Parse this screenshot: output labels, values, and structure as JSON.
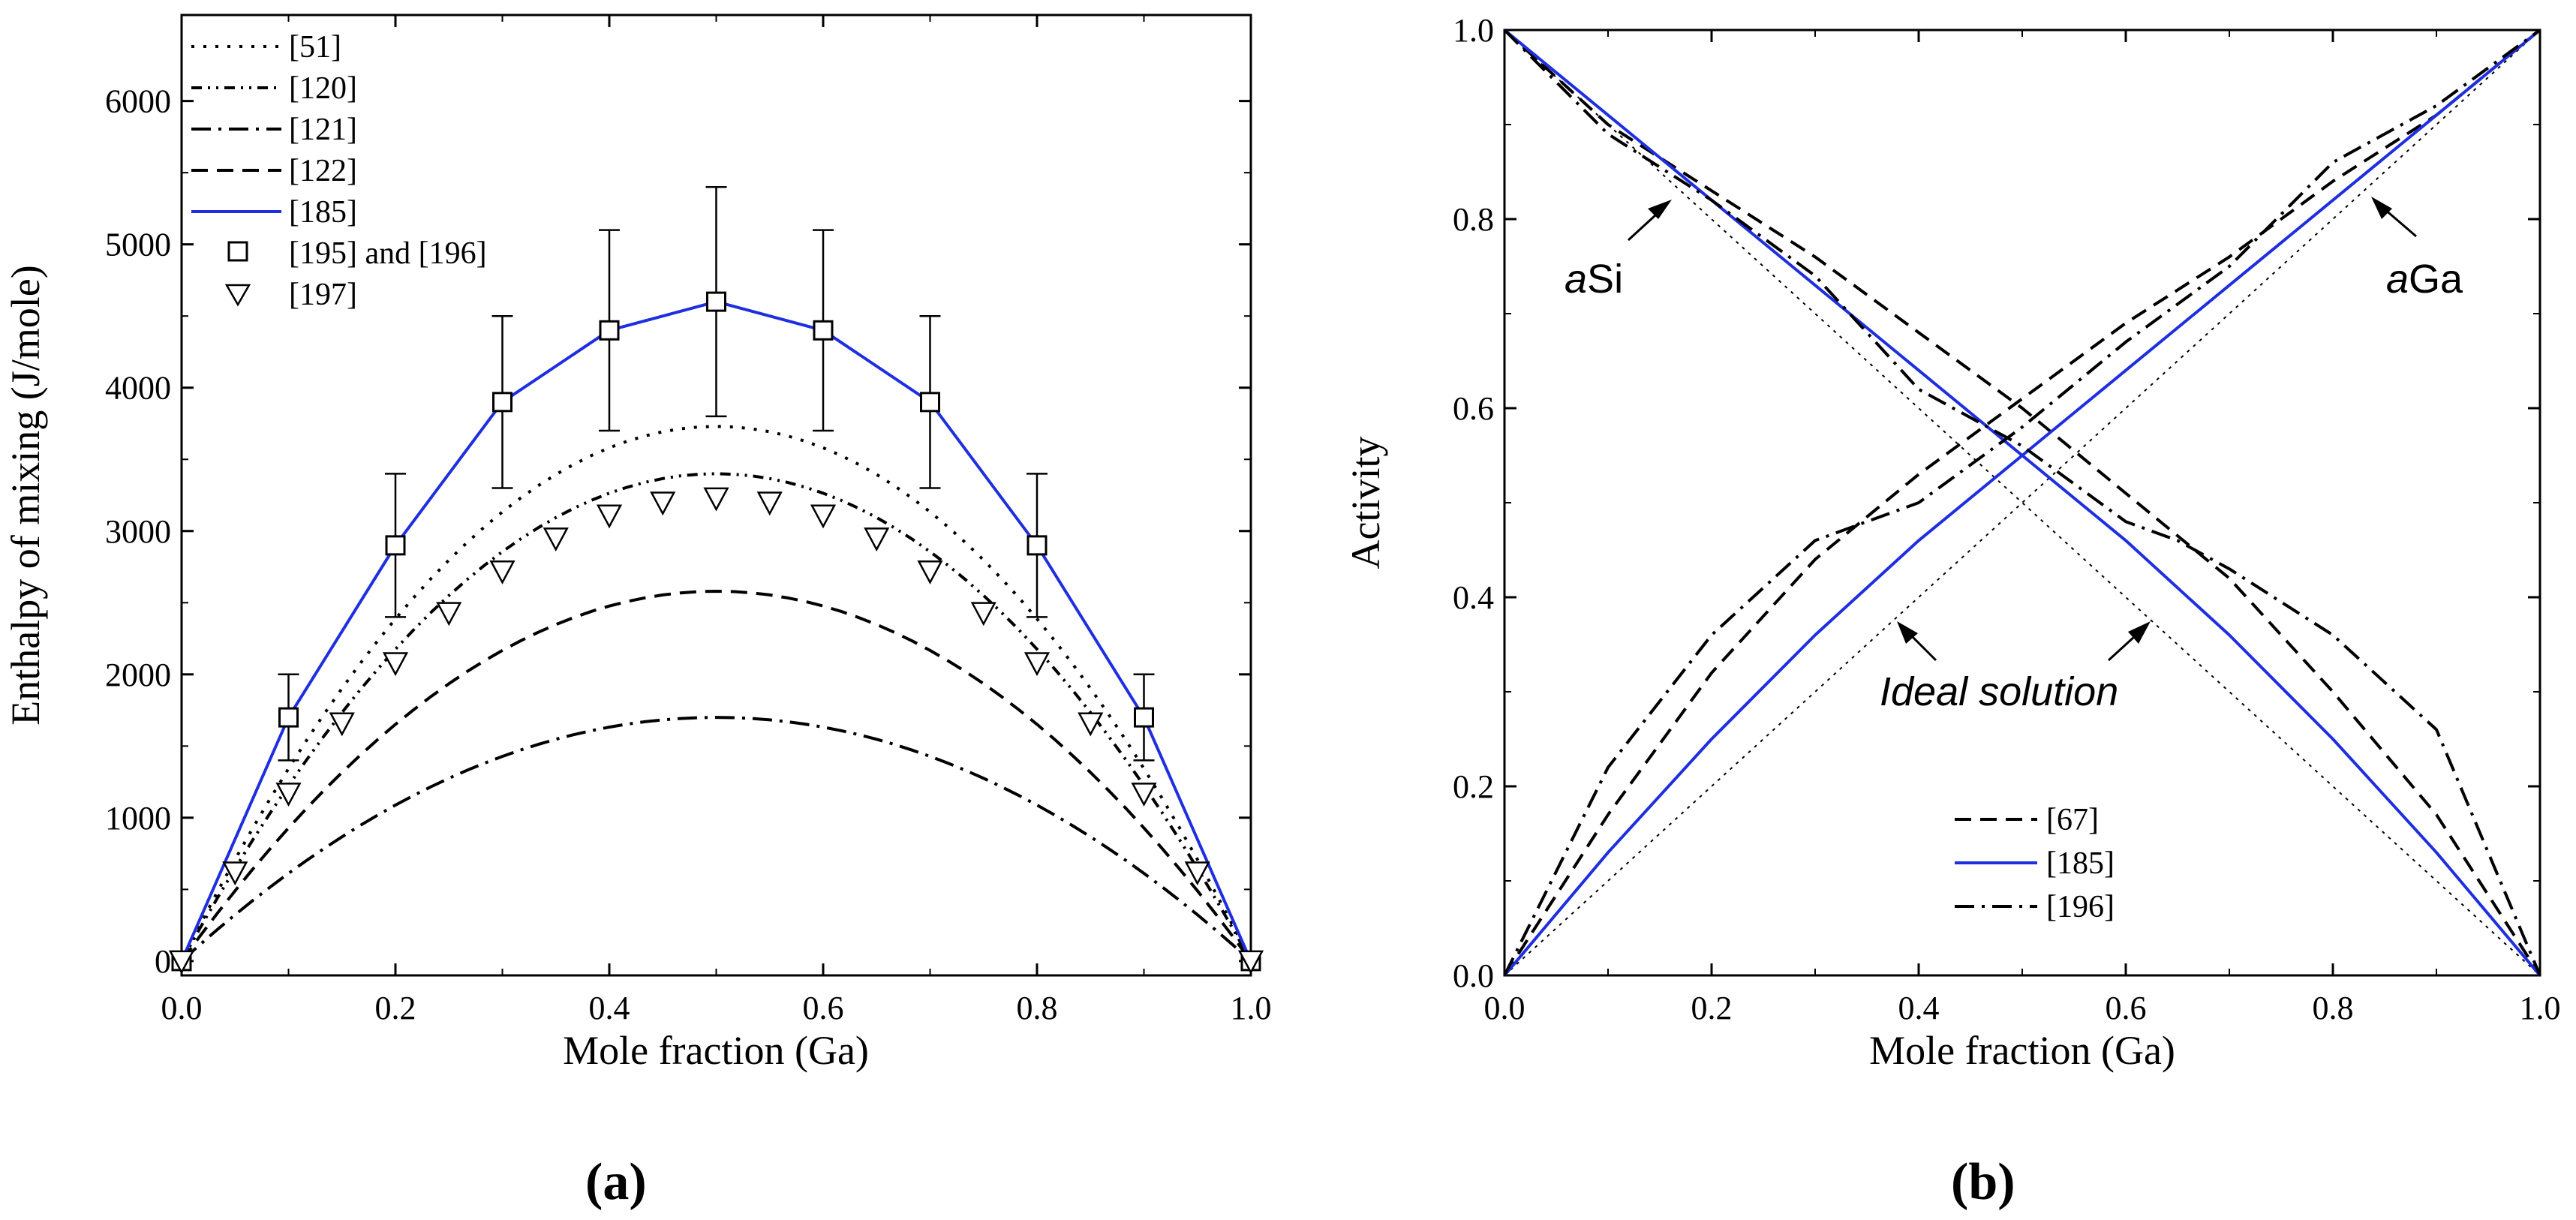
{
  "colors": {
    "blue": "#1f2fe0",
    "black": "#000000"
  },
  "panels": {
    "a": {
      "label_open": "(",
      "label_letter": "a",
      "label_close": ")"
    },
    "b": {
      "label_open": "(",
      "label_letter": "b",
      "label_close": ")"
    }
  },
  "chart_data": [
    {
      "id": "a",
      "type": "line",
      "xlabel": "Mole fraction (Ga)",
      "ylabel": "Enthalpy of mixing (J/mole)",
      "xlim": [
        0.0,
        1.0
      ],
      "ylim": [
        -100,
        6600
      ],
      "xticks": [
        0.0,
        0.2,
        0.4,
        0.6,
        0.8,
        1.0
      ],
      "xtick_labels": [
        "0.0",
        "0.2",
        "0.4",
        "0.6",
        "0.8",
        "1.0"
      ],
      "yticks": [
        0,
        1000,
        2000,
        3000,
        4000,
        5000,
        6000
      ],
      "ytick_labels": [
        "0",
        "1000",
        "2000",
        "3000",
        "4000",
        "5000",
        "6000"
      ],
      "legend_position": "top-left",
      "series": [
        {
          "name": "[51]",
          "style": "dotted",
          "color": "#000000",
          "peak": 3730
        },
        {
          "name": "[120]",
          "style": "dash-dot-dot",
          "color": "#000000",
          "peak": 3400
        },
        {
          "name": "[121]",
          "style": "dash-dot",
          "color": "#000000",
          "peak": 1700
        },
        {
          "name": "[122]",
          "style": "dashed",
          "color": "#000000",
          "peak": 2580
        },
        {
          "name": "[185]",
          "style": "solid",
          "color": "#1f2fe0",
          "x": [
            0.0,
            0.1,
            0.2,
            0.3,
            0.4,
            0.5,
            0.6,
            0.7,
            0.8,
            0.9,
            1.0
          ],
          "y": [
            0,
            1700,
            2900,
            3900,
            4400,
            4600,
            4400,
            3900,
            2900,
            1700,
            0
          ]
        },
        {
          "name": "[195] and [196]",
          "style": "square-markers",
          "color": "#000000",
          "x": [
            0.0,
            0.1,
            0.2,
            0.3,
            0.4,
            0.5,
            0.6,
            0.7,
            0.8,
            0.9,
            1.0
          ],
          "y": [
            0,
            1700,
            2900,
            3900,
            4400,
            4600,
            4400,
            3900,
            2900,
            1700,
            0
          ],
          "error_low": [
            null,
            1400,
            2400,
            3300,
            3700,
            3800,
            3700,
            3300,
            2400,
            1400,
            null
          ],
          "error_high": [
            null,
            2000,
            3400,
            4500,
            5100,
            5400,
            5100,
            4500,
            3400,
            2000,
            null
          ]
        },
        {
          "name": "[197]",
          "style": "triangle-markers",
          "color": "#000000",
          "x": [
            0.0,
            0.05,
            0.1,
            0.15,
            0.2,
            0.25,
            0.3,
            0.35,
            0.4,
            0.45,
            0.5,
            0.55,
            0.6,
            0.65,
            0.7,
            0.75,
            0.8,
            0.85,
            0.9,
            0.95,
            1.0
          ],
          "y": [
            0,
            620,
            1170,
            1660,
            2080,
            2430,
            2720,
            2950,
            3110,
            3200,
            3230,
            3200,
            3110,
            2950,
            2720,
            2430,
            2080,
            1660,
            1170,
            620,
            0
          ]
        }
      ]
    },
    {
      "id": "b",
      "type": "line",
      "xlabel": "Mole fraction (Ga)",
      "ylabel": "Activity",
      "xlim": [
        0.0,
        1.0
      ],
      "ylim": [
        0.0,
        1.0
      ],
      "xticks": [
        0.0,
        0.2,
        0.4,
        0.6,
        0.8,
        1.0
      ],
      "xtick_labels": [
        "0.0",
        "0.2",
        "0.4",
        "0.6",
        "0.8",
        "1.0"
      ],
      "yticks": [
        0.0,
        0.2,
        0.4,
        0.6,
        0.8,
        1.0
      ],
      "ytick_labels": [
        "0.0",
        "0.2",
        "0.4",
        "0.6",
        "0.8",
        "1.0"
      ],
      "legend_position": "bottom-center",
      "annotations": {
        "asi_italic": "a",
        "asi_rest": "Si",
        "aga_italic": "a",
        "aga_rest": "Ga",
        "ideal": "Ideal solution"
      },
      "series": [
        {
          "name": "Ideal aGa",
          "legend": false,
          "style": "thin-dotted",
          "color": "#000000",
          "x": [
            0.0,
            1.0
          ],
          "y": [
            0.0,
            1.0
          ]
        },
        {
          "name": "Ideal aSi",
          "legend": false,
          "style": "thin-dotted",
          "color": "#000000",
          "x": [
            0.0,
            1.0
          ],
          "y": [
            1.0,
            0.0
          ]
        },
        {
          "name": "[67]",
          "component": "aGa",
          "style": "dashed",
          "color": "#000000",
          "x": [
            0.0,
            0.1,
            0.2,
            0.3,
            0.4,
            0.5,
            0.6,
            0.7,
            0.8,
            0.9,
            1.0
          ],
          "y": [
            0.0,
            0.17,
            0.32,
            0.44,
            0.53,
            0.61,
            0.69,
            0.76,
            0.84,
            0.91,
            1.0
          ]
        },
        {
          "name": "[67]",
          "component": "aSi",
          "style": "dashed",
          "color": "#000000",
          "x": [
            0.0,
            0.1,
            0.2,
            0.3,
            0.4,
            0.5,
            0.6,
            0.7,
            0.8,
            0.9,
            1.0
          ],
          "y": [
            1.0,
            0.9,
            0.83,
            0.76,
            0.68,
            0.6,
            0.51,
            0.42,
            0.3,
            0.17,
            0.0
          ]
        },
        {
          "name": "[185]",
          "component": "aGa",
          "style": "solid",
          "color": "#1f2fe0",
          "x": [
            0.0,
            0.1,
            0.2,
            0.3,
            0.4,
            0.5,
            0.6,
            0.7,
            0.8,
            0.9,
            1.0
          ],
          "y": [
            0.0,
            0.13,
            0.25,
            0.36,
            0.46,
            0.55,
            0.64,
            0.73,
            0.82,
            0.91,
            1.0
          ]
        },
        {
          "name": "[185]",
          "component": "aSi",
          "style": "solid",
          "color": "#1f2fe0",
          "x": [
            0.0,
            0.1,
            0.2,
            0.3,
            0.4,
            0.5,
            0.6,
            0.7,
            0.8,
            0.9,
            1.0
          ],
          "y": [
            1.0,
            0.91,
            0.82,
            0.73,
            0.64,
            0.55,
            0.46,
            0.36,
            0.25,
            0.13,
            0.0
          ]
        },
        {
          "name": "[196]",
          "component": "aGa",
          "style": "dash-dot",
          "color": "#000000",
          "x": [
            0.0,
            0.1,
            0.2,
            0.3,
            0.35,
            0.4,
            0.5,
            0.6,
            0.7,
            0.8,
            0.9,
            1.0
          ],
          "y": [
            0.0,
            0.22,
            0.36,
            0.46,
            0.48,
            0.5,
            0.58,
            0.67,
            0.75,
            0.86,
            0.92,
            1.0
          ]
        },
        {
          "name": "[196]",
          "component": "aSi",
          "style": "dash-dot",
          "color": "#000000",
          "x": [
            0.0,
            0.1,
            0.2,
            0.3,
            0.4,
            0.5,
            0.6,
            0.65,
            0.7,
            0.8,
            0.9,
            1.0
          ],
          "y": [
            1.0,
            0.89,
            0.82,
            0.74,
            0.62,
            0.56,
            0.48,
            0.46,
            0.43,
            0.36,
            0.26,
            0.0
          ]
        }
      ]
    }
  ]
}
